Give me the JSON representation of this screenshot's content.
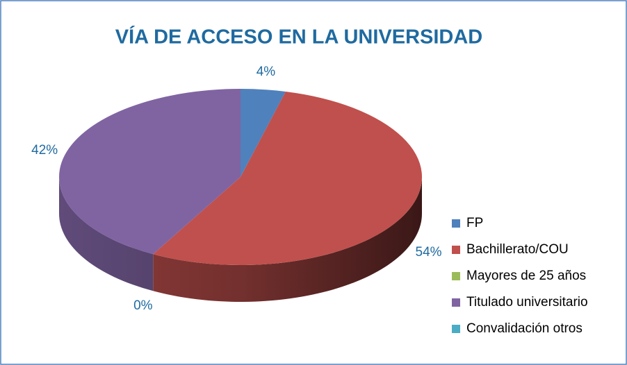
{
  "chart_data": {
    "type": "pie3d",
    "title": "VÍA DE ACCESO EN LA UNIVERSIDAD",
    "categories": [
      "FP",
      "Bachillerato/COU",
      "Mayores de 25 años",
      "Titulado universitario",
      "Convalidación otros"
    ],
    "values": [
      4,
      54,
      0,
      42,
      0
    ],
    "value_labels": [
      "4%",
      "54%",
      "0%",
      "42%",
      null
    ],
    "colors": [
      "#4f81bd",
      "#c0504d",
      "#9bbb59",
      "#8064a2",
      "#4bacc6"
    ],
    "legend": "right"
  }
}
